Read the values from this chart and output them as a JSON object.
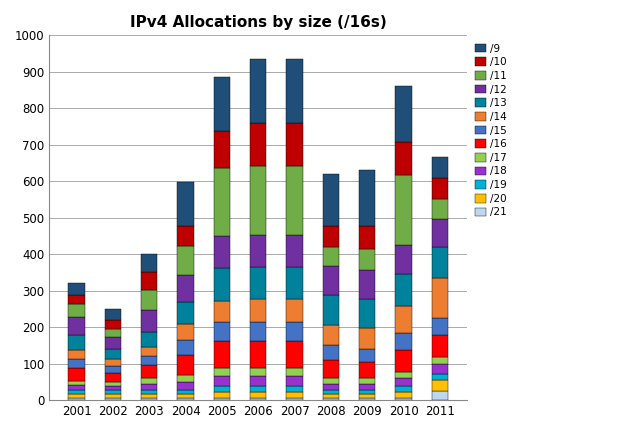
{
  "title": "IPv4 Allocations by size (/16s)",
  "years": [
    2001,
    2002,
    2003,
    2004,
    2005,
    2006,
    2007,
    2008,
    2009,
    2010,
    2011
  ],
  "legend_colors": {
    "/9": "#1F4E79",
    "/10": "#BE0000",
    "/11": "#70AD47",
    "/12": "#7030A0",
    "/13": "#00829C",
    "/14": "#ED7D31",
    "/15": "#4472C4",
    "/16": "#FF0000",
    "/17": "#92D050",
    "/18": "#9932CC",
    "/19": "#00B0D8",
    "/20": "#FFC000",
    "/21": "#BDD7EE"
  },
  "stack_order": [
    "/21",
    "/20",
    "/19",
    "/18",
    "/17",
    "/16",
    "/15",
    "/14",
    "/13",
    "/12",
    "/11",
    "/10",
    "/9"
  ],
  "chart_data": {
    "/21": [
      5,
      5,
      5,
      5,
      5,
      5,
      5,
      5,
      5,
      5,
      25
    ],
    "/20": [
      12,
      12,
      12,
      12,
      18,
      18,
      18,
      12,
      12,
      18,
      30
    ],
    "/19": [
      10,
      10,
      10,
      12,
      15,
      15,
      15,
      10,
      10,
      15,
      18
    ],
    "/18": [
      15,
      12,
      18,
      22,
      28,
      28,
      28,
      18,
      18,
      22,
      25
    ],
    "/17": [
      10,
      10,
      15,
      18,
      22,
      22,
      22,
      15,
      15,
      18,
      20
    ],
    "/16": [
      35,
      25,
      35,
      55,
      75,
      75,
      75,
      50,
      45,
      60,
      60
    ],
    "/15": [
      25,
      20,
      25,
      42,
      50,
      50,
      50,
      42,
      35,
      45,
      48
    ],
    "/14": [
      25,
      20,
      25,
      42,
      60,
      65,
      65,
      55,
      58,
      75,
      110
    ],
    "/13": [
      42,
      25,
      42,
      62,
      88,
      88,
      88,
      80,
      80,
      88,
      85
    ],
    "/12": [
      50,
      35,
      60,
      72,
      88,
      88,
      88,
      80,
      80,
      80,
      75
    ],
    "/11": [
      35,
      20,
      55,
      80,
      188,
      188,
      188,
      52,
      55,
      190,
      55
    ],
    "/10": [
      25,
      25,
      48,
      55,
      100,
      118,
      118,
      58,
      65,
      92,
      58
    ],
    "/9": [
      32,
      32,
      50,
      120,
      148,
      175,
      175,
      143,
      152,
      152,
      57
    ]
  },
  "ylim": [
    0,
    1000
  ],
  "yticks": [
    0,
    100,
    200,
    300,
    400,
    500,
    600,
    700,
    800,
    900,
    1000
  ],
  "background_color": "#FFFFFF",
  "grid_color": "#AAAAAA"
}
